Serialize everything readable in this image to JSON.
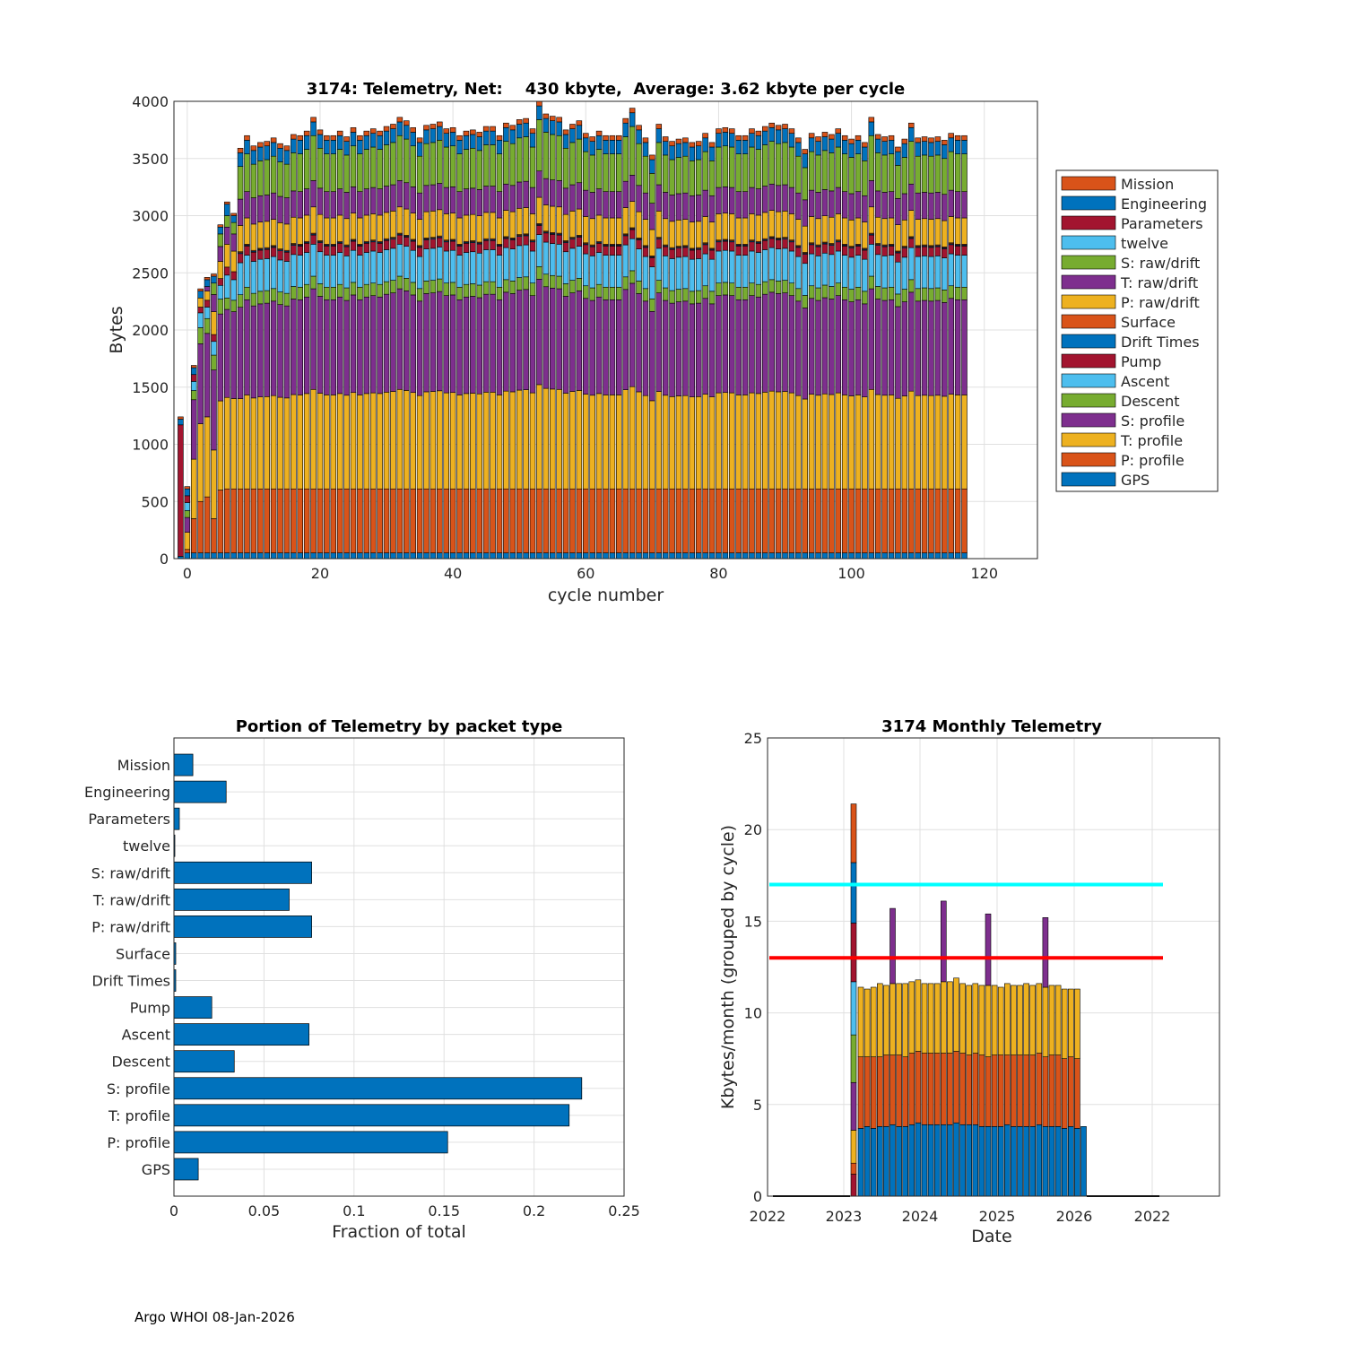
{
  "footer": "Argo WHOI 08-Jan-2026",
  "colors": {
    "GPS": "#0072BD",
    "P: profile": "#D95319",
    "T: profile": "#EDB120",
    "S: profile": "#7E2F8E",
    "Descent": "#77AC30",
    "Ascent": "#4DBEEE",
    "Pump": "#A2142F",
    "Drift Times": "#0072BD",
    "Surface": "#D95319",
    "P: raw/drift": "#EDB120",
    "T: raw/drift": "#7E2F8E",
    "S: raw/drift": "#77AC30",
    "twelve": "#4DBEEE",
    "Parameters": "#A2142F",
    "Engineering": "#0072BD",
    "Mission": "#D95319",
    "cyan_line": "#00FFFF",
    "red_line": "#FF0000"
  },
  "chart_data": [
    {
      "id": "telemetry",
      "type": "bar",
      "stacked": true,
      "title": "3174: Telemetry, Net:    430 kbyte,  Average: 3.62 kbyte per cycle",
      "xlabel": "cycle number",
      "ylabel": "Bytes",
      "xlim": [
        -2,
        128
      ],
      "ylim": [
        0,
        4000
      ],
      "xticks": [
        0,
        20,
        40,
        60,
        80,
        100,
        120
      ],
      "yticks": [
        0,
        500,
        1000,
        1500,
        2000,
        2500,
        3000,
        3500,
        4000
      ],
      "grid": true,
      "legend_position": "right",
      "legend": [
        "Mission",
        "Engineering",
        "Parameters",
        "twelve",
        "S: raw/drift",
        "T: raw/drift",
        "P: raw/drift",
        "Surface",
        "Drift Times",
        "Pump",
        "Ascent",
        "Descent",
        "S: profile",
        "T: profile",
        "P: profile",
        "GPS"
      ],
      "stack_order": [
        "GPS",
        "P: profile",
        "T: profile",
        "S: profile",
        "Descent",
        "Ascent",
        "Pump",
        "Drift Times",
        "Surface",
        "P: raw/drift",
        "T: raw/drift",
        "S: raw/drift",
        "twelve",
        "Parameters",
        "Engineering",
        "Mission"
      ],
      "special_cycles": [
        {
          "cycle": -1,
          "segments": {
            "GPS": 20,
            "Parameters": 1150,
            "Engineering": 50,
            "Mission": 20
          }
        },
        {
          "cycle": 0,
          "segments": {
            "GPS": 50,
            "P: profile": 30,
            "T: profile": 150,
            "S: profile": 130,
            "Descent": 60,
            "Ascent": 70,
            "Pump": 60,
            "Engineering": 60,
            "Mission": 20
          }
        },
        {
          "cycle": 1,
          "segments": {
            "GPS": 50,
            "P: profile": 300,
            "T: profile": 520,
            "S: profile": 520,
            "Descent": 80,
            "Ascent": 80,
            "Pump": 60,
            "Engineering": 60,
            "Mission": 20
          }
        },
        {
          "cycle": 2,
          "segments": {
            "GPS": 50,
            "P: profile": 450,
            "T: profile": 680,
            "S: profile": 700,
            "Descent": 140,
            "Ascent": 130,
            "Pump": 50,
            "P: raw/drift": 80,
            "Engineering": 60,
            "Mission": 20
          }
        },
        {
          "cycle": 3,
          "segments": {
            "GPS": 50,
            "P: profile": 490,
            "T: profile": 700,
            "S: profile": 730,
            "Descent": 130,
            "Ascent": 100,
            "Pump": 60,
            "P: raw/drift": 80,
            "T: raw/drift": 40,
            "Engineering": 60,
            "Mission": 20
          }
        },
        {
          "cycle": 4,
          "segments": {
            "GPS": 50,
            "P: profile": 300,
            "T: profile": 600,
            "S: profile": 700,
            "Descent": 130,
            "Ascent": 120,
            "Pump": 60,
            "P: raw/drift": 200,
            "T: raw/drift": 150,
            "S: raw/drift": 100,
            "Engineering": 60,
            "Mission": 20
          }
        },
        {
          "cycle": 5,
          "segments": {
            "GPS": 50,
            "P: profile": 550,
            "T: profile": 780,
            "S: profile": 760,
            "Descent": 130,
            "Ascent": 120,
            "Pump": 60,
            "P: raw/drift": 150,
            "T: raw/drift": 130,
            "S: raw/drift": 110,
            "Engineering": 60,
            "Mission": 20
          }
        },
        {
          "cycle": 6,
          "segments": {
            "GPS": 50,
            "P: profile": 560,
            "T: profile": 800,
            "S: profile": 770,
            "Descent": 100,
            "Ascent": 200,
            "Pump": 70,
            "P: raw/drift": 200,
            "T: raw/drift": 150,
            "S: raw/drift": 100,
            "Engineering": 100,
            "Mission": 20
          }
        },
        {
          "cycle": 7,
          "segments": {
            "GPS": 50,
            "P: profile": 560,
            "T: profile": 790,
            "S: profile": 760,
            "Descent": 100,
            "Ascent": 180,
            "Pump": 70,
            "P: raw/drift": 180,
            "T: raw/drift": 150,
            "S: raw/drift": 100,
            "Engineering": 60,
            "Mission": 20
          }
        }
      ],
      "regular_cycles": {
        "first": 8,
        "last": 117,
        "segments": {
          "GPS": 50,
          "P: profile": 560,
          "T: profile": 800,
          "S: profile": 810,
          "Descent": 110,
          "Ascent": 280,
          "Pump": 80,
          "Drift Times": 8,
          "Surface": 8,
          "P: raw/drift": 230,
          "T: raw/drift": 230,
          "S: raw/drift": 300,
          "twelve": 0,
          "Parameters": 0,
          "Engineering": 120,
          "Mission": 40
        },
        "totals": [
          3590,
          3700,
          3610,
          3640,
          3650,
          3680,
          3630,
          3610,
          3710,
          3700,
          3740,
          3860,
          3750,
          3700,
          3700,
          3740,
          3690,
          3770,
          3700,
          3740,
          3760,
          3740,
          3780,
          3800,
          3860,
          3830,
          3770,
          3680,
          3790,
          3800,
          3820,
          3760,
          3770,
          3700,
          3740,
          3750,
          3730,
          3780,
          3780,
          3700,
          3810,
          3790,
          3840,
          3850,
          3760,
          4000,
          3890,
          3870,
          3860,
          3750,
          3800,
          3830,
          3720,
          3690,
          3740,
          3700,
          3700,
          3700,
          3850,
          3940,
          3790,
          3680,
          3530,
          3800,
          3690,
          3650,
          3670,
          3680,
          3640,
          3650,
          3720,
          3640,
          3760,
          3770,
          3760,
          3700,
          3700,
          3760,
          3740,
          3780,
          3810,
          3790,
          3800,
          3760,
          3680,
          3580,
          3720,
          3690,
          3730,
          3710,
          3760,
          3700,
          3670,
          3700,
          3640,
          3860,
          3710,
          3690,
          3700,
          3600,
          3670,
          3810,
          3680,
          3690,
          3680,
          3690,
          3660,
          3720,
          3700,
          3700
        ],
        "note": "per-cycle totals; segments give the typical per-packet composition scaled to each total"
      }
    },
    {
      "id": "portion",
      "type": "bar",
      "orientation": "horizontal",
      "title": "Portion of Telemetry by packet type",
      "xlabel": "Fraction of total",
      "ylabel": "",
      "xlim": [
        0,
        0.25
      ],
      "xticks": [
        0,
        0.05,
        0.1,
        0.15,
        0.2,
        0.25
      ],
      "xtick_labels": [
        "0",
        "0.05",
        "0.1",
        "0.15",
        "0.2",
        "0.25"
      ],
      "grid": true,
      "categories": [
        "Mission",
        "Engineering",
        "Parameters",
        "twelve",
        "S: raw/drift",
        "T: raw/drift",
        "P: raw/drift",
        "Surface",
        "Drift Times",
        "Pump",
        "Ascent",
        "Descent",
        "S: profile",
        "T: profile",
        "P: profile",
        "GPS"
      ],
      "values": [
        0.0105,
        0.029,
        0.003,
        0.0005,
        0.0765,
        0.064,
        0.0765,
        0.001,
        0.001,
        0.021,
        0.075,
        0.0335,
        0.2265,
        0.2195,
        0.152,
        0.0135
      ]
    },
    {
      "id": "monthly",
      "type": "bar",
      "stacked": true,
      "title": "3174 Monthly Telemetry",
      "xlabel": "Date",
      "ylabel": "Kbytes/month (grouped by cycle)",
      "ylim": [
        0,
        25
      ],
      "yticks": [
        0,
        5,
        10,
        15,
        20,
        25
      ],
      "xtick_labels": [
        "2022",
        "2023",
        "2024",
        "2025",
        "2026",
        "2022"
      ],
      "grid": true,
      "reference_lines": [
        {
          "value": 17,
          "color": "cyan"
        },
        {
          "value": 13,
          "color": "red"
        }
      ],
      "first_month": {
        "bottom_to_top": [
          {
            "packet": "Pump",
            "value": 1.2
          },
          {
            "packet": "P: profile",
            "value": 0.6
          },
          {
            "packet": "T: profile",
            "value": 1.8
          },
          {
            "packet": "S: profile",
            "value": 2.6
          },
          {
            "packet": "Descent",
            "value": 2.6
          },
          {
            "packet": "Ascent",
            "value": 2.9
          },
          {
            "packet": "Pump",
            "value": 3.2
          },
          {
            "packet": "Engineering",
            "value": 3.3
          },
          {
            "packet": "Mission",
            "value": 3.2
          }
        ],
        "total": 21.4
      },
      "monthly": {
        "months_count": 36,
        "gps_pprofile": [
          3.7,
          3.8,
          3.7,
          3.8,
          3.8,
          3.9,
          3.8,
          3.8,
          3.9,
          4.0,
          3.9,
          3.9,
          3.9,
          3.9,
          3.9,
          4.0,
          3.9,
          3.9,
          3.9,
          3.8,
          3.8,
          3.8,
          3.8,
          3.9,
          3.8,
          3.8,
          3.8,
          3.8,
          3.9,
          3.8,
          3.8,
          3.8,
          3.7,
          3.8,
          3.7,
          3.8
        ],
        "p_profile": [
          3.9,
          3.8,
          3.9,
          3.8,
          3.9,
          3.8,
          3.9,
          3.8,
          3.9,
          3.9,
          3.9,
          3.9,
          3.9,
          3.9,
          3.9,
          3.9,
          3.9,
          3.8,
          3.9,
          3.9,
          3.8,
          3.9,
          3.9,
          3.8,
          3.9,
          3.9,
          3.9,
          3.9,
          3.9,
          3.8,
          3.9,
          3.9,
          3.8,
          3.8,
          3.8,
          0.0
        ],
        "t_profile": [
          3.8,
          3.7,
          3.8,
          4.0,
          3.8,
          3.9,
          3.9,
          4.0,
          3.9,
          3.9,
          3.8,
          3.8,
          3.8,
          3.9,
          3.9,
          4.0,
          3.8,
          3.8,
          3.8,
          3.8,
          3.9,
          3.8,
          3.7,
          3.9,
          3.8,
          3.8,
          3.9,
          3.8,
          3.8,
          3.8,
          3.8,
          3.8,
          3.8,
          3.7,
          3.8,
          0.0
        ],
        "purple_top_months": [
          {
            "month_index": 5,
            "top": 15.7
          },
          {
            "month_index": 13,
            "top": 16.1
          },
          {
            "month_index": 20,
            "top": 15.4
          },
          {
            "month_index": 29,
            "top": 15.2
          }
        ],
        "note": "monthly stacks: GPS-blue base, orange, yellow layers; purple caps on months listed"
      }
    }
  ]
}
